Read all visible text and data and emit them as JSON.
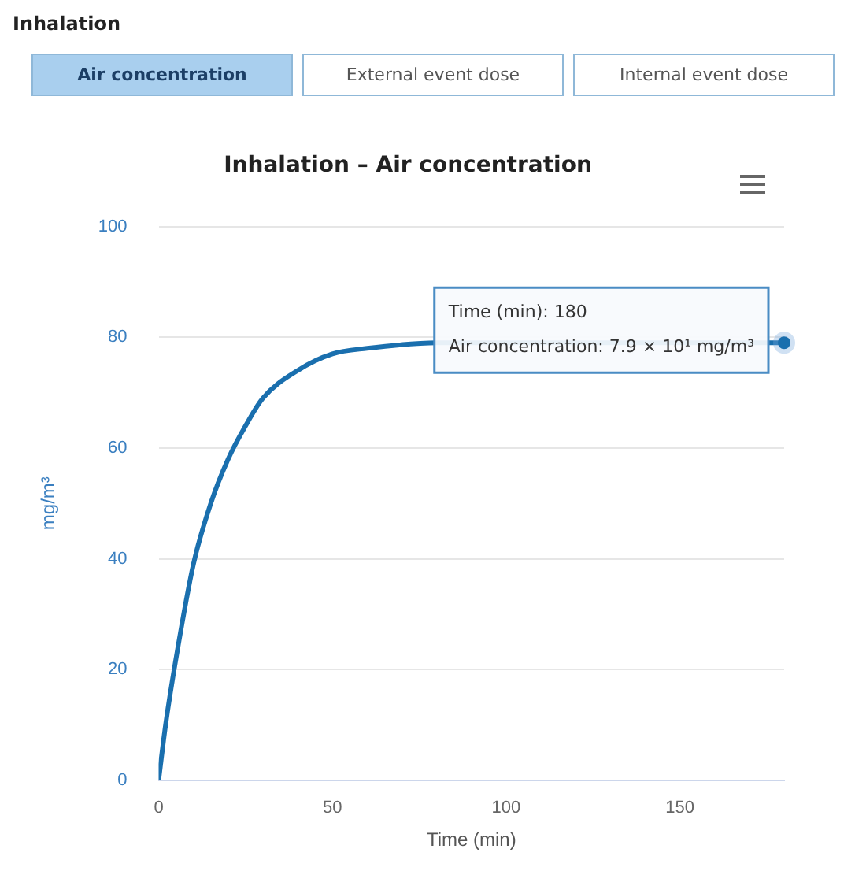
{
  "chart_data": {
    "type": "line",
    "title": "Inhalation – Air concentration",
    "xlabel": "Time (min)",
    "ylabel": "mg/m³",
    "x": [
      0,
      2,
      5,
      10,
      15,
      20,
      25,
      30,
      40,
      50,
      60,
      80,
      180
    ],
    "series": [
      {
        "color": "#1a6fae",
        "values": [
          0,
          10,
          22,
          39,
          50,
          58,
          64,
          69,
          74,
          77,
          78,
          79,
          79
        ]
      }
    ],
    "xlim": [
      0,
      180
    ],
    "xticks": [
      0,
      50,
      100,
      150
    ],
    "ylim": [
      0,
      100
    ],
    "yticks": [
      0,
      20,
      40,
      60,
      80,
      100
    ],
    "grid": "y",
    "legend": false,
    "marker": "none",
    "line_style": "solid",
    "annotations": [
      "Inhalation",
      "Air concentration",
      "External event dose",
      "Internal event dose",
      {
        "text": "Time (min): 180\nAir concentration: 7.9 × 10¹ mg/m³",
        "x": 180,
        "y": 79
      }
    ]
  }
}
